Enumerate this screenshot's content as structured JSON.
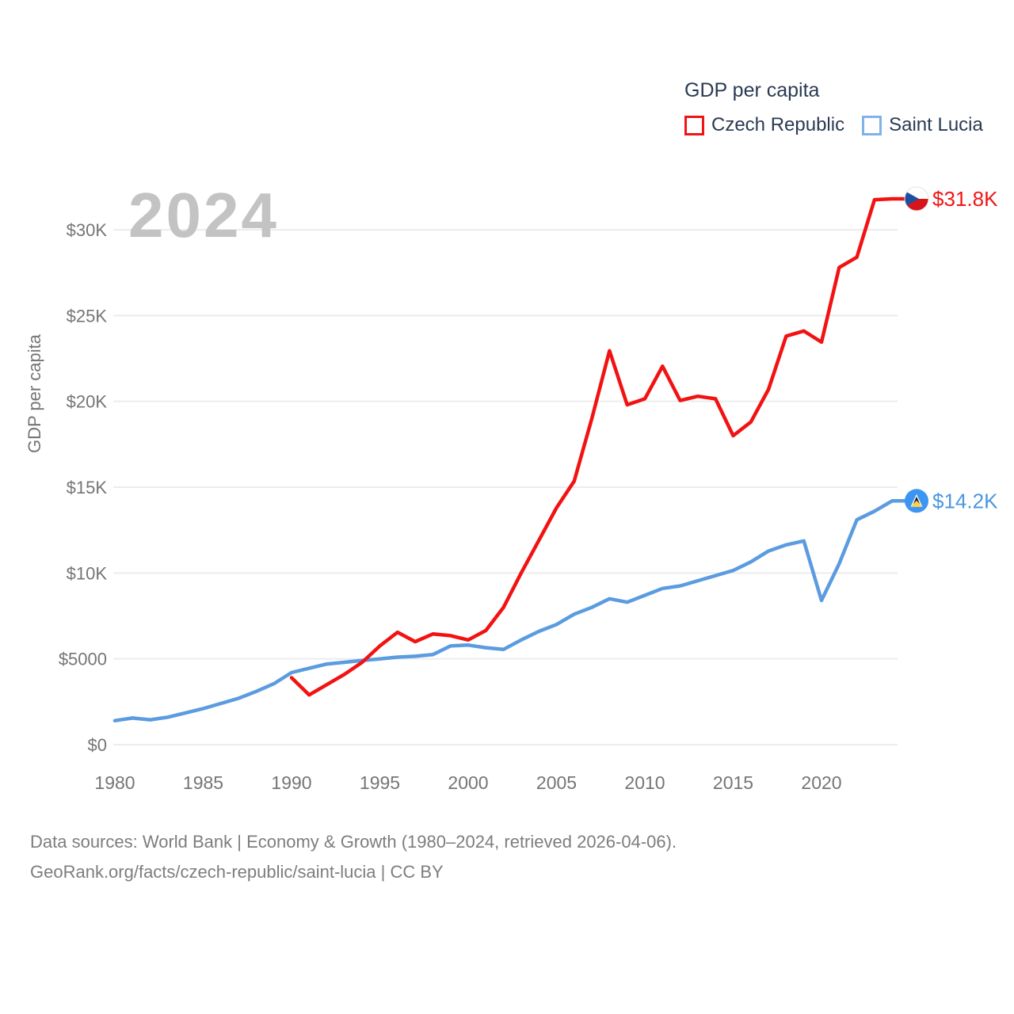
{
  "legend": {
    "title": "GDP per capita",
    "items": [
      {
        "label": "Czech Republic",
        "color": "#f01414"
      },
      {
        "label": "Saint Lucia",
        "color": "#7fb3e8"
      }
    ]
  },
  "watermark": "2024",
  "y_axis_title": "GDP per capita",
  "footer": {
    "line1": "Data sources: World Bank | Economy & Growth (1980–2024, retrieved 2026-04-06).",
    "line2": "GeoRank.org/facts/czech-republic/saint-lucia | CC BY"
  },
  "chart_data": {
    "type": "line",
    "title": "GDP per capita",
    "xlabel": "",
    "ylabel": "GDP per capita",
    "grid": true,
    "legend_position": "top-right",
    "x_range": [
      1980,
      2024
    ],
    "ylim": [
      0,
      32500
    ],
    "x_ticks": [
      1980,
      1985,
      1990,
      1995,
      2000,
      2005,
      2010,
      2015,
      2020
    ],
    "y_tick_values": [
      0,
      5000,
      10000,
      15000,
      20000,
      25000,
      30000
    ],
    "y_ticks": [
      "$0",
      "$5000",
      "$10K",
      "$15K",
      "$20K",
      "$25K",
      "$30K"
    ],
    "series": [
      {
        "name": "Saint Lucia",
        "color": "#5b9be0",
        "label_color": "#4c96e0",
        "flag": "saint-lucia",
        "start_year": 1980,
        "end_label": "$14.2K",
        "values": [
          1400,
          1550,
          1450,
          1600,
          1850,
          2100,
          2400,
          2700,
          3100,
          3550,
          4200,
          4450,
          4700,
          4800,
          4900,
          5000,
          5100,
          5150,
          5250,
          5750,
          5800,
          5650,
          5550,
          6100,
          6600,
          7000,
          7600,
          8000,
          8500,
          8300,
          8700,
          9100,
          9250,
          9550,
          9850,
          10150,
          10650,
          11280,
          11640,
          11870,
          8400,
          10540,
          13100,
          13600,
          14200
        ]
      },
      {
        "name": "Czech Republic",
        "color": "#f21212",
        "label_color": "#f21414",
        "flag": "czech",
        "start_year": 1990,
        "end_label": "$31.8K",
        "values": [
          3900,
          2900,
          3500,
          4100,
          4800,
          5750,
          6550,
          6000,
          6450,
          6350,
          6100,
          6650,
          8000,
          10000,
          11900,
          13800,
          15350,
          19000,
          22950,
          19800,
          20150,
          22050,
          20050,
          20300,
          20150,
          18000,
          18800,
          20700,
          23800,
          24100,
          23450,
          27800,
          28400,
          31750,
          31800
        ]
      }
    ],
    "colors": {
      "gridline": "#ececec",
      "tick_label": "#757575",
      "czech_flag_red": "#d7141a",
      "czech_flag_blue": "#1d4f9e",
      "saint_lucia_blue": "#3d95f2",
      "saint_lucia_yellow": "#f9d24a"
    }
  }
}
